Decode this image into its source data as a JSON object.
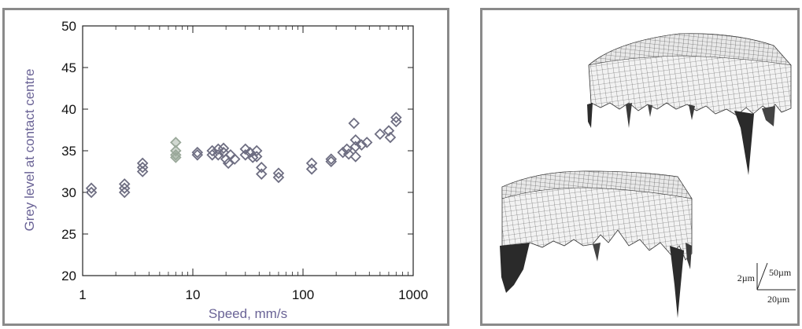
{
  "chart_data": {
    "type": "scatter",
    "title": "",
    "xlabel": "Speed, mm/s",
    "ylabel": "Grey level at contact centre",
    "xscale": "log",
    "xlim": [
      1,
      1000
    ],
    "ylim": [
      20,
      50
    ],
    "xticks": [
      1,
      10,
      100,
      1000
    ],
    "yticks": [
      20,
      25,
      30,
      35,
      40,
      45,
      50
    ],
    "grid": false,
    "marker": "diamond",
    "marker_color": "#6e6e82",
    "highlight_color": "#9aa89a",
    "points": [
      {
        "x": 1.2,
        "y": 30.5
      },
      {
        "x": 1.2,
        "y": 30.0
      },
      {
        "x": 2.4,
        "y": 31.0
      },
      {
        "x": 2.4,
        "y": 30.5
      },
      {
        "x": 2.4,
        "y": 30.0
      },
      {
        "x": 3.5,
        "y": 33.5
      },
      {
        "x": 3.5,
        "y": 33.0
      },
      {
        "x": 3.5,
        "y": 32.5
      },
      {
        "x": 7,
        "y": 36.0,
        "highlight": true
      },
      {
        "x": 7,
        "y": 35.0,
        "highlight": true
      },
      {
        "x": 7,
        "y": 34.5,
        "highlight": true
      },
      {
        "x": 7,
        "y": 34.2,
        "highlight": true
      },
      {
        "x": 11,
        "y": 34.5
      },
      {
        "x": 11,
        "y": 34.8
      },
      {
        "x": 15,
        "y": 35.0
      },
      {
        "x": 15,
        "y": 34.5
      },
      {
        "x": 17,
        "y": 35.2
      },
      {
        "x": 17,
        "y": 34.5
      },
      {
        "x": 19,
        "y": 35.3
      },
      {
        "x": 19,
        "y": 34.8
      },
      {
        "x": 20,
        "y": 34.0
      },
      {
        "x": 21,
        "y": 33.5
      },
      {
        "x": 22,
        "y": 34.5
      },
      {
        "x": 24,
        "y": 34.0
      },
      {
        "x": 30,
        "y": 35.2
      },
      {
        "x": 30,
        "y": 34.5
      },
      {
        "x": 33,
        "y": 34.8
      },
      {
        "x": 35,
        "y": 34.2
      },
      {
        "x": 38,
        "y": 35.0
      },
      {
        "x": 38,
        "y": 34.3
      },
      {
        "x": 42,
        "y": 33.0
      },
      {
        "x": 42,
        "y": 32.2
      },
      {
        "x": 60,
        "y": 32.3
      },
      {
        "x": 60,
        "y": 31.8
      },
      {
        "x": 120,
        "y": 33.5
      },
      {
        "x": 120,
        "y": 32.8
      },
      {
        "x": 180,
        "y": 34.0
      },
      {
        "x": 180,
        "y": 33.7
      },
      {
        "x": 230,
        "y": 34.8
      },
      {
        "x": 250,
        "y": 35.2
      },
      {
        "x": 260,
        "y": 34.6
      },
      {
        "x": 290,
        "y": 38.3
      },
      {
        "x": 300,
        "y": 36.3
      },
      {
        "x": 300,
        "y": 35.5
      },
      {
        "x": 300,
        "y": 34.3
      },
      {
        "x": 340,
        "y": 35.7
      },
      {
        "x": 380,
        "y": 36.0
      },
      {
        "x": 500,
        "y": 37.0
      },
      {
        "x": 600,
        "y": 37.4
      },
      {
        "x": 620,
        "y": 36.6
      },
      {
        "x": 700,
        "y": 39.0
      },
      {
        "x": 700,
        "y": 38.5
      }
    ]
  },
  "scale_bar": {
    "z_label": "2µm",
    "y_label": "50µm",
    "x_label": "20µm"
  }
}
